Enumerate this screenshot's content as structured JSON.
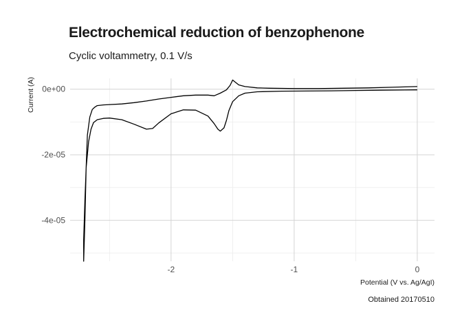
{
  "chart_data": {
    "type": "line",
    "title": "Electrochemical reduction of benzophenone",
    "subtitle": "Cyclic voltammetry, 0.1 V/s",
    "caption": "Obtained 20170510",
    "xlabel": "Potential (V vs. Ag/AgI)",
    "ylabel": "Current (A)",
    "xlim": [
      -2.82,
      0.14
    ],
    "ylim": [
      -5.25e-05,
      3.3e-06
    ],
    "x_ticks": [
      -2,
      -1,
      0
    ],
    "x_tick_labels": [
      "-2",
      "-1",
      "0"
    ],
    "y_ticks": [
      0,
      -2e-05,
      -4e-05
    ],
    "y_tick_labels": [
      "0e+00",
      "-2e-05",
      "-4e-05"
    ],
    "grid": true,
    "series": [
      {
        "name": "",
        "color": "#000000",
        "x": [
          0.0,
          -0.1,
          -0.3,
          -0.5,
          -0.7,
          -0.9,
          -1.1,
          -1.3,
          -1.4,
          -1.45,
          -1.5,
          -1.53,
          -1.55,
          -1.57,
          -1.6,
          -1.62,
          -1.65,
          -1.7,
          -1.8,
          -1.9,
          -2.0,
          -2.1,
          -2.15,
          -2.2,
          -2.3,
          -2.4,
          -2.5,
          -2.55,
          -2.6,
          -2.63,
          -2.65,
          -2.67,
          -2.69,
          -2.7,
          -2.71,
          -2.71,
          -2.7,
          -2.69,
          -2.68,
          -2.66,
          -2.64,
          -2.62,
          -2.6,
          -2.55,
          -2.5,
          -2.4,
          -2.3,
          -2.2,
          -2.1,
          -2.0,
          -1.9,
          -1.8,
          -1.7,
          -1.65,
          -1.6,
          -1.55,
          -1.52,
          -1.5,
          -1.48,
          -1.45,
          -1.4,
          -1.3,
          -1.2,
          -1.0,
          -0.8,
          -0.6,
          -0.4,
          -0.2,
          0.0
        ],
        "y": [
          -2e-07,
          -2.5e-07,
          -3e-07,
          -4e-07,
          -5e-07,
          -5.5e-07,
          -6e-07,
          -8e-07,
          -1.2e-06,
          -2e-06,
          -3.8e-06,
          -6.5e-06,
          -9.5e-06,
          -1.18e-05,
          -1.28e-05,
          -1.22e-05,
          -1.05e-05,
          -8.2e-06,
          -6.4e-06,
          -6.3e-06,
          -7.5e-06,
          -1.03e-05,
          -1.2e-05,
          -1.22e-05,
          -1.07e-05,
          -9.3e-06,
          -8.8e-06,
          -8.9e-06,
          -9.3e-06,
          -1.02e-05,
          -1.22e-05,
          -1.6e-05,
          -2.4e-05,
          -3.4e-05,
          -4.6e-05,
          -5.25e-05,
          -4e-05,
          -2.4e-05,
          -1.4e-05,
          -8.5e-06,
          -6.2e-06,
          -5.5e-06,
          -5e-06,
          -4.8e-06,
          -4.7e-06,
          -4.5e-06,
          -4.1e-06,
          -3.6e-06,
          -3e-06,
          -2.5e-06,
          -2e-06,
          -1.8e-06,
          -1.8e-06,
          -2e-06,
          -1.2e-06,
          -2e-07,
          1.2e-06,
          2.8e-06,
          2.2e-06,
          1.3e-06,
          8e-07,
          4e-07,
          3e-07,
          2e-07,
          2e-07,
          3e-07,
          4e-07,
          6e-07,
          8e-07
        ]
      }
    ]
  }
}
